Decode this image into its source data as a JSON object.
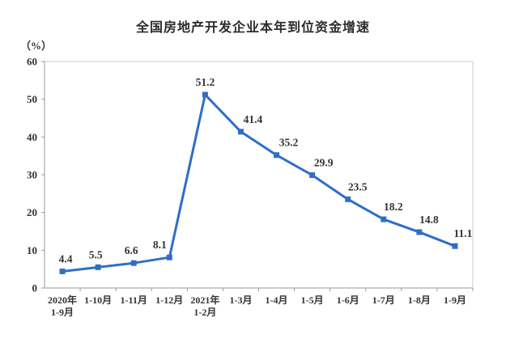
{
  "chart_data": {
    "type": "line",
    "title": "全国房地产开发企业本年到位资金增速",
    "unit_label": "（%）",
    "categories": [
      [
        "2020年",
        "1-9月"
      ],
      [
        "1-10月"
      ],
      [
        "1-11月"
      ],
      [
        "1-12月"
      ],
      [
        "2021年",
        "1-2月"
      ],
      [
        "1-3月"
      ],
      [
        "1-4月"
      ],
      [
        "1-5月"
      ],
      [
        "1-6月"
      ],
      [
        "1-7月"
      ],
      [
        "1-8月"
      ],
      [
        "1-9月"
      ]
    ],
    "values": [
      4.4,
      5.5,
      6.6,
      8.1,
      51.2,
      41.4,
      35.2,
      29.9,
      23.5,
      18.2,
      14.8,
      11.1
    ],
    "xlabel": "",
    "ylabel": "",
    "ylim": [
      0,
      60
    ],
    "ytick_step": 10,
    "yticks": [
      0,
      10,
      20,
      30,
      40,
      50,
      60
    ],
    "grid": false,
    "legend": "none",
    "line_color": "#2F6EC8",
    "marker": "square",
    "axis_color": "#9a9a9a",
    "frame_color": "#cccccc",
    "label_color": "#2b2b2b"
  }
}
